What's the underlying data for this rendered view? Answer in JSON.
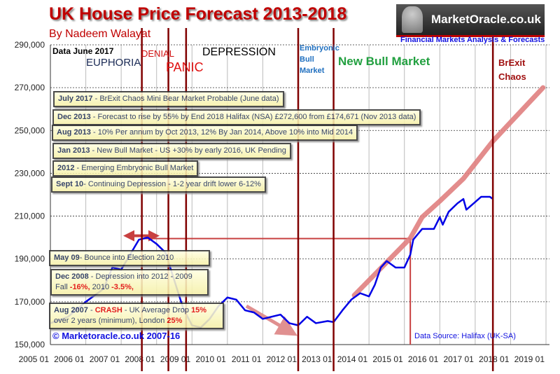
{
  "header": {
    "title": "UK House Price Forecast 2013-2018",
    "subtitle": "By Nadeem Walayat",
    "logo_text": "MarketOracle.co.uk",
    "tagline": "Financial Markets Analysis & Forecasts"
  },
  "phases": {
    "data_date": "Data June 2017",
    "euphoria": "EUPHORIA",
    "denial": "DENIAL",
    "panic": "PANIC",
    "depression": "DEPRESSION",
    "embryonic": [
      "Embryonic",
      "Bull",
      "Market"
    ],
    "new_bull": "New Bull Market",
    "brexit": [
      "BrExit",
      "Chaos"
    ]
  },
  "annotations": [
    {
      "date": "July 2017",
      "text": " - BrExit Chaos Mini Bear Market Probable (June data)"
    },
    {
      "date": "Dec 2013",
      "text": " - Forecast to rise by 55% by End 2018 Halifax (NSA) £272,600 from £174,671 (Nov 2013 data)"
    },
    {
      "date": "Aug 2013",
      "text": " - 10% Per annum by Oct 2013, 12% By Jan 2014, Above 10% into Mid 2014"
    },
    {
      "date": "Jan 2013",
      "text": " - New Bull Market - US +30% by early 2016, UK Pending"
    },
    {
      "date": "2012",
      "text": " - Emerging Embryonic Bull Market"
    },
    {
      "date": "Sept 10",
      "text": "-  Continuing Depression - 1-2 year drift lower 6-12%"
    },
    {
      "date": "May 09",
      "text": "-  Bounce into Election 2010"
    }
  ],
  "dec2008": {
    "date": "Dec 2008",
    "line1": " - Depression into 2012 - 2009",
    "fall": "Fall ",
    "v1": "-16%,",
    "mid": " 2010 ",
    "v2": "-3.5%,"
  },
  "aug2007": {
    "date": "Aug 2007",
    "dash": " - ",
    "crash": "CRASH",
    "mid": " - UK Average Drop ",
    "v1": "15%",
    "line2": "over 2 years  (minimum), London ",
    "v2": "25%"
  },
  "copyright": "© Marketoracle.co.uk 2007-16",
  "source": "Data Source: Halifax (UK-SA)",
  "colors": {
    "actual": "#0000e6",
    "forecast": "#e08080",
    "markers": "#800000",
    "title": "#c00000"
  },
  "chart_data": {
    "type": "line",
    "title": "UK House Price Forecast 2013-2018",
    "xlim": [
      "2005-01",
      "2019-01"
    ],
    "ylim": [
      150000,
      290000
    ],
    "x_ticks": [
      "2005 01",
      "2006 01",
      "2007 01",
      "2008 01",
      "2009 01",
      "2010 01",
      "2011 01",
      "2012 01",
      "2013 01",
      "2014 01",
      "2015 01",
      "2016 01",
      "2017 01",
      "2018 01",
      "2019 01"
    ],
    "y_ticks": [
      "150,000",
      "170,000",
      "190,000",
      "210,000",
      "230,000",
      "250,000",
      "270,000",
      "290,000"
    ],
    "grid": true,
    "series": [
      {
        "key": "actual",
        "points": [
          [
            "2005-01",
            160000
          ],
          [
            "2005-07",
            163000
          ],
          [
            "2006-01",
            170000
          ],
          [
            "2006-07",
            176000
          ],
          [
            "2006-10",
            186000
          ],
          [
            "2007-01",
            185000
          ],
          [
            "2007-04",
            192000
          ],
          [
            "2007-07",
            199000
          ],
          [
            "2007-10",
            200000
          ],
          [
            "2008-01",
            197000
          ],
          [
            "2008-04",
            193000
          ],
          [
            "2008-07",
            180000
          ],
          [
            "2008-10",
            167000
          ],
          [
            "2009-01",
            159000
          ],
          [
            "2009-04",
            158000
          ],
          [
            "2009-07",
            162000
          ],
          [
            "2009-10",
            168000
          ],
          [
            "2010-01",
            172000
          ],
          [
            "2010-04",
            171000
          ],
          [
            "2010-07",
            166000
          ],
          [
            "2010-10",
            165000
          ],
          [
            "2011-01",
            162000
          ],
          [
            "2011-07",
            164000
          ],
          [
            "2011-10",
            160000
          ],
          [
            "2012-01",
            159000
          ],
          [
            "2012-04",
            163000
          ],
          [
            "2012-07",
            160000
          ],
          [
            "2012-11",
            161000
          ],
          [
            "2013-01",
            160500
          ],
          [
            "2013-04",
            166000
          ],
          [
            "2013-07",
            171000
          ],
          [
            "2013-10",
            174000
          ],
          [
            "2014-01",
            172500
          ],
          [
            "2014-03",
            178000
          ],
          [
            "2014-05",
            186000
          ],
          [
            "2014-07",
            189000
          ],
          [
            "2014-10",
            186000
          ],
          [
            "2015-01",
            186000
          ],
          [
            "2015-03",
            192000
          ],
          [
            "2015-04",
            199000
          ],
          [
            "2015-07",
            204000
          ],
          [
            "2015-09",
            204000
          ],
          [
            "2015-11",
            204000
          ],
          [
            "2016-01",
            209500
          ],
          [
            "2016-02",
            206000
          ],
          [
            "2016-04",
            212000
          ],
          [
            "2016-07",
            216000
          ],
          [
            "2016-09",
            218000
          ],
          [
            "2016-10",
            213000
          ],
          [
            "2017-01",
            216600
          ],
          [
            "2017-03",
            219000
          ],
          [
            "2017-06",
            219000
          ],
          [
            "2017-07",
            218000
          ]
        ]
      },
      {
        "key": "forecast",
        "points": [
          [
            "2013-08",
            173000
          ],
          [
            "2015-03",
            199700
          ],
          [
            "2015-07",
            209500
          ],
          [
            "2016-01",
            217000
          ],
          [
            "2016-09",
            227500
          ],
          [
            "2017-07",
            245000
          ],
          [
            "2018-12",
            270000
          ]
        ]
      }
    ],
    "event_lines": [
      "2007-08",
      "2008-05",
      "2008-11",
      "2012-01",
      "2013-01",
      "2017-07"
    ]
  }
}
